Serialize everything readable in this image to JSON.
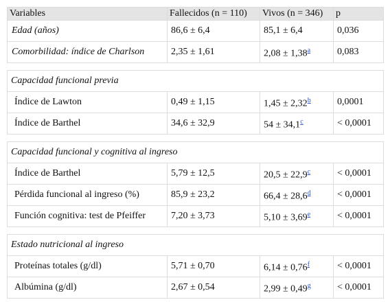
{
  "table": {
    "header": [
      "Variables",
      "Fallecidos (n = 110)",
      "Vivos (n = 346)",
      "p"
    ],
    "groups": [
      {
        "rows": [
          {
            "label": "Edad (años)",
            "fallecidos": "86,6 ± 6,4",
            "vivos": "85,1 ± 6,4",
            "p": "0,036"
          },
          {
            "label": "Comorbilidad: índice de Charlson",
            "fallecidos": "2,35 ± 1,61",
            "vivos": "2,08 ± 1,38",
            "note": "a",
            "p": "0,083"
          }
        ]
      },
      {
        "title": "Capacidad funcional previa",
        "rows": [
          {
            "label": "Índice de Lawton",
            "fallecidos": "0,49 ± 1,15",
            "vivos": "1,45 ± 2,32",
            "note": "b",
            "p": "0,0001"
          },
          {
            "label": "Índice de Barthel",
            "fallecidos": "34,6 ± 32,9",
            "vivos": "54 ± 34,1",
            "note": "c",
            "p": "< 0,0001"
          }
        ]
      },
      {
        "title": "Capacidad funcional y cognitiva al ingreso",
        "rows": [
          {
            "label": "Índice de Barthel",
            "fallecidos": "5,79 ± 12,5",
            "vivos": "20,5 ± 22,9",
            "note": "c",
            "p": "< 0,0001"
          },
          {
            "label": "Pérdida funcional al ingreso (%)",
            "fallecidos": "85,9 ± 23,2",
            "vivos": "66,4 ± 28,6",
            "note": "d",
            "p": "< 0,0001"
          },
          {
            "label": "Función cognitiva: test de Pfeiffer",
            "fallecidos": "7,20 ± 3,73",
            "vivos": "5,10 ± 3,69",
            "note": "e",
            "p": "< 0,0001"
          }
        ]
      },
      {
        "title": "Estado nutricional al ingreso",
        "rows": [
          {
            "label": "Proteínas totales (g/dl)",
            "fallecidos": "5,71 ± 0,70",
            "vivos": "6,14 ± 0,76",
            "note": "f",
            "p": "< 0,0001"
          },
          {
            "label": "Albúmina (g/dl)",
            "fallecidos": "2,67 ± 0,54",
            "vivos": "2,99 ± 0,49",
            "note": "g",
            "p": "< 0,0001"
          }
        ]
      }
    ]
  }
}
